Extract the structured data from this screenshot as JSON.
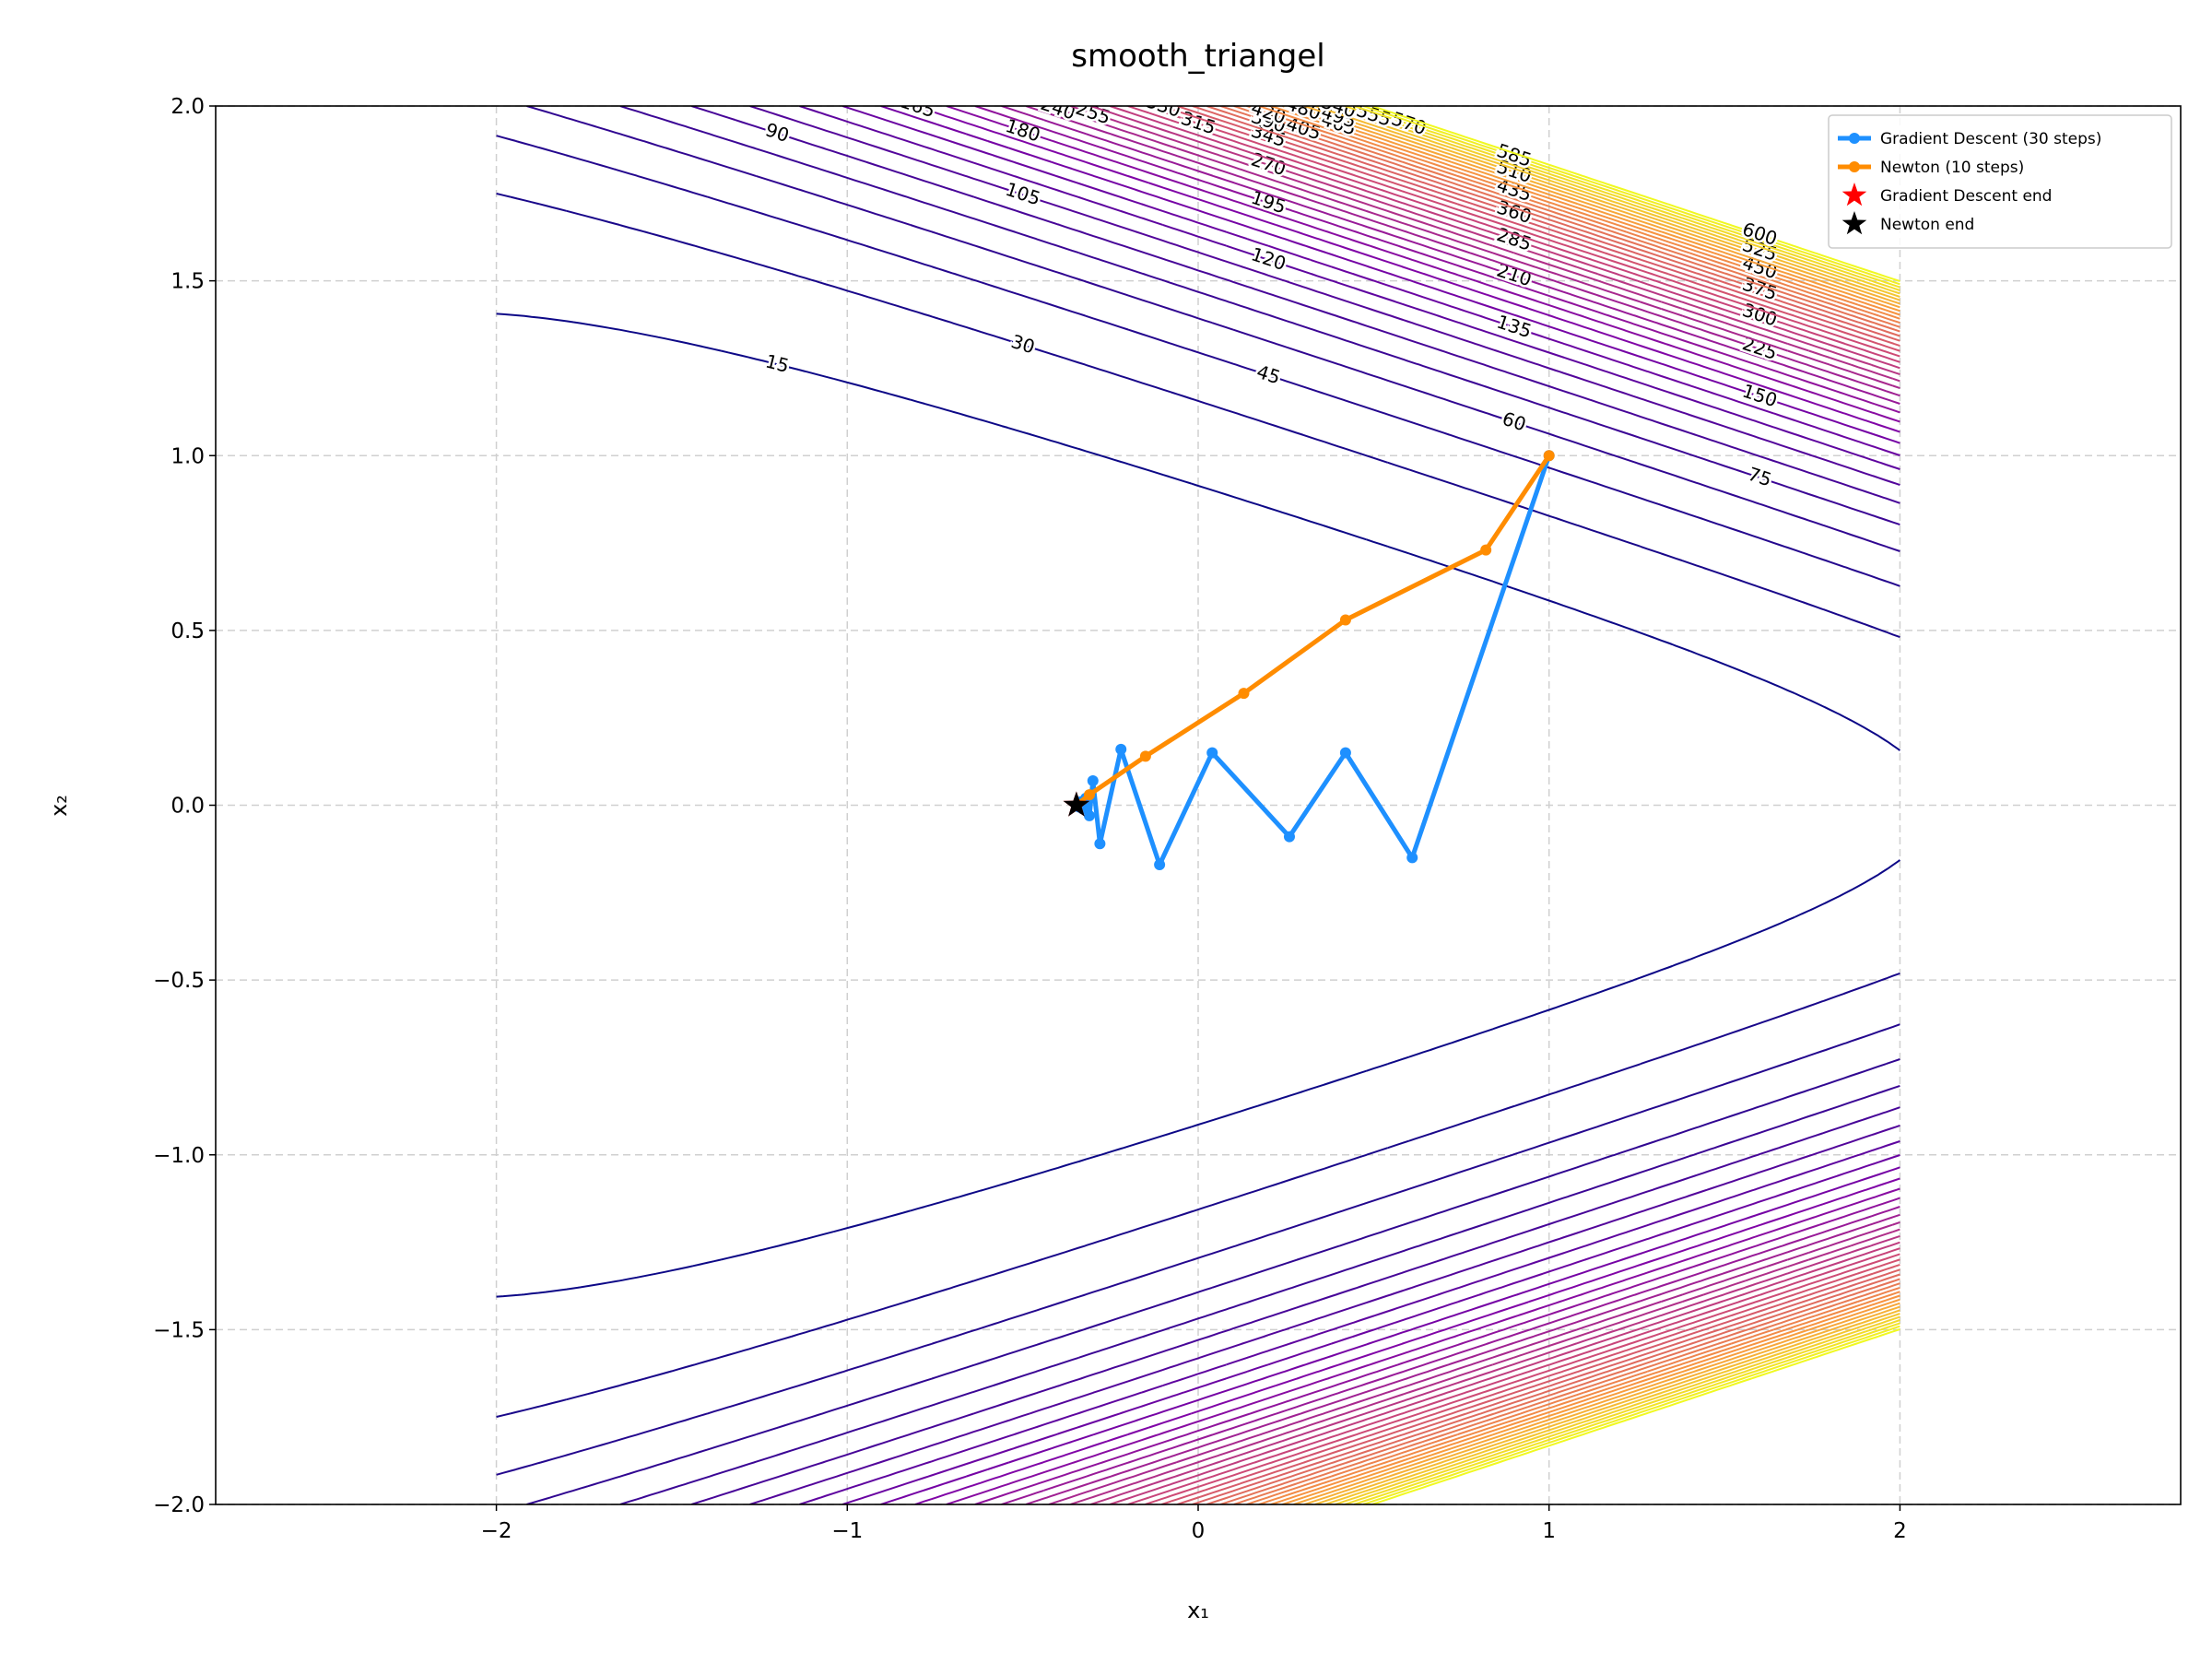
{
  "chart_data": {
    "type": "contour",
    "title": "smooth_triangel",
    "x_label": "x₁",
    "y_label": "x₂",
    "xlim": [
      -2.8,
      2.8
    ],
    "ylim": [
      -2,
      2
    ],
    "xticks": [
      {
        "value": -2,
        "label": "−2"
      },
      {
        "value": -1,
        "label": "−1"
      },
      0,
      1,
      2
    ],
    "yticks": [
      {
        "value": -2,
        "label": "−2.0"
      },
      {
        "value": -1.5,
        "label": "−1.5"
      },
      {
        "value": -1,
        "label": "−1.0"
      },
      {
        "value": -0.5,
        "label": "−0.5"
      },
      {
        "value": 0,
        "label": "0.0"
      },
      0.5,
      {
        "value": 1,
        "label": "1.0"
      },
      1.5,
      {
        "value": 2,
        "label": "2.0"
      }
    ],
    "grid": true,
    "levels": [
      15,
      30,
      45,
      60,
      75,
      90,
      105,
      120,
      135,
      150,
      165,
      180,
      195,
      210,
      225,
      240,
      255,
      270,
      285,
      300,
      315,
      330,
      345,
      360,
      375,
      390,
      405,
      420,
      435,
      450,
      465,
      480,
      495,
      510,
      525,
      540,
      555,
      570,
      585,
      600
    ],
    "colormap": [
      "#0d0887",
      "#7e03a8",
      "#cc4778",
      "#f89540",
      "#f0f921"
    ],
    "legend": "upper right",
    "series": [
      {
        "name": "Gradient Descent (30 steps)",
        "color": "#1e90ff",
        "x": [
          1.0,
          0.61,
          0.42,
          0.26,
          0.04,
          -0.11,
          -0.22,
          -0.28,
          -0.3,
          -0.31,
          -0.32,
          -0.33,
          -0.335,
          -0.34,
          -0.342,
          -0.344,
          -0.345,
          -0.346,
          -0.346,
          -0.346,
          -0.347,
          -0.347,
          -0.347,
          -0.347,
          -0.347,
          -0.347,
          -0.347,
          -0.347,
          -0.347,
          -0.347,
          -0.347
        ],
        "y": [
          1.0,
          -0.15,
          0.15,
          -0.09,
          0.15,
          -0.17,
          0.16,
          -0.11,
          0.07,
          -0.03,
          0.02,
          -0.01,
          0.01,
          -0.005,
          0.003,
          -0.002,
          0.001,
          -0.001,
          0.0,
          0.0,
          0.0,
          0.0,
          0.0,
          0.0,
          0.0,
          0.0,
          0.0,
          0.0,
          0.0,
          0.0,
          0.0
        ]
      },
      {
        "name": "Newton (10 steps)",
        "color": "#ff8c00",
        "x": [
          1.0,
          0.82,
          0.42,
          0.13,
          -0.15,
          -0.31,
          -0.345,
          -0.347,
          -0.347,
          -0.347,
          -0.347
        ],
        "y": [
          1.0,
          0.73,
          0.53,
          0.32,
          0.14,
          0.03,
          0.002,
          0.0,
          0.0,
          0.0,
          0.0
        ]
      }
    ],
    "markers": [
      {
        "name": "Gradient Descent end",
        "color": "#ff0000",
        "x": -0.347,
        "y": 0.0
      },
      {
        "name": "Newton end",
        "color": "#000000",
        "x": -0.347,
        "y": 0.0
      }
    ]
  }
}
